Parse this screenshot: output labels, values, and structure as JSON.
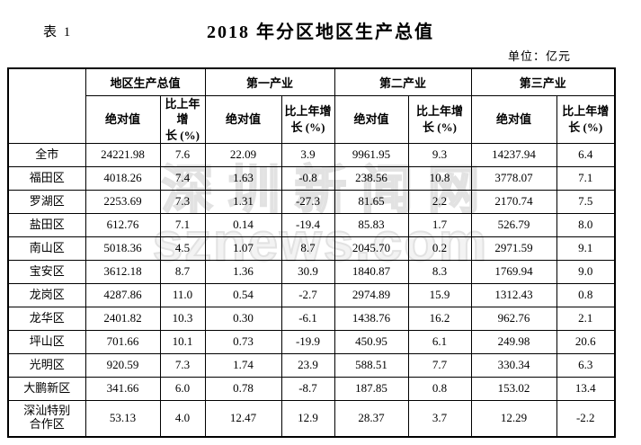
{
  "page": {
    "table_label": "表 1",
    "title": "2018 年分区地区生产总值",
    "unit_note": "单位：亿元"
  },
  "watermark": {
    "line1": "深圳新闻网",
    "line2": "sznews.com",
    "color": "#e2e2e2"
  },
  "table": {
    "corner_label": "",
    "groups": [
      "地区生产总值",
      "第一产业",
      "第二产业",
      "第三产业"
    ],
    "sub_abs_label": "绝对值",
    "sub_growth_label": "比上年增\n长 (%)",
    "rows": [
      {
        "name": "全市",
        "values": [
          "24221.98",
          "7.6",
          "22.09",
          "3.9",
          "9961.95",
          "9.3",
          "14237.94",
          "6.4"
        ]
      },
      {
        "name": "福田区",
        "values": [
          "4018.26",
          "7.4",
          "1.63",
          "-0.8",
          "238.56",
          "10.8",
          "3778.07",
          "7.1"
        ]
      },
      {
        "name": "罗湖区",
        "values": [
          "2253.69",
          "7.3",
          "1.31",
          "-27.3",
          "81.65",
          "2.2",
          "2170.74",
          "7.5"
        ]
      },
      {
        "name": "盐田区",
        "values": [
          "612.76",
          "7.1",
          "0.14",
          "-19.4",
          "85.83",
          "1.7",
          "526.79",
          "8.0"
        ]
      },
      {
        "name": "南山区",
        "values": [
          "5018.36",
          "4.5",
          "1.07",
          "8.7",
          "2045.70",
          "0.2",
          "2971.59",
          "9.1"
        ]
      },
      {
        "name": "宝安区",
        "values": [
          "3612.18",
          "8.7",
          "1.36",
          "30.9",
          "1840.87",
          "8.3",
          "1769.94",
          "9.0"
        ]
      },
      {
        "name": "龙岗区",
        "values": [
          "4287.86",
          "11.0",
          "0.54",
          "-2.7",
          "2974.89",
          "15.9",
          "1312.43",
          "0.8"
        ]
      },
      {
        "name": "龙华区",
        "values": [
          "2401.82",
          "10.3",
          "0.30",
          "-6.1",
          "1438.76",
          "16.2",
          "962.76",
          "2.1"
        ]
      },
      {
        "name": "坪山区",
        "values": [
          "701.66",
          "10.1",
          "0.73",
          "-19.9",
          "450.95",
          "6.1",
          "249.98",
          "20.6"
        ]
      },
      {
        "name": "光明区",
        "values": [
          "920.59",
          "7.3",
          "1.74",
          "23.9",
          "588.51",
          "7.7",
          "330.34",
          "6.3"
        ]
      },
      {
        "name": "大鹏新区",
        "values": [
          "341.66",
          "6.0",
          "0.78",
          "-8.7",
          "187.85",
          "0.8",
          "153.02",
          "13.4"
        ]
      },
      {
        "name": "深汕特别\n合作区",
        "values": [
          "53.13",
          "4.0",
          "12.47",
          "12.9",
          "28.37",
          "3.7",
          "12.29",
          "-2.2"
        ]
      }
    ]
  }
}
